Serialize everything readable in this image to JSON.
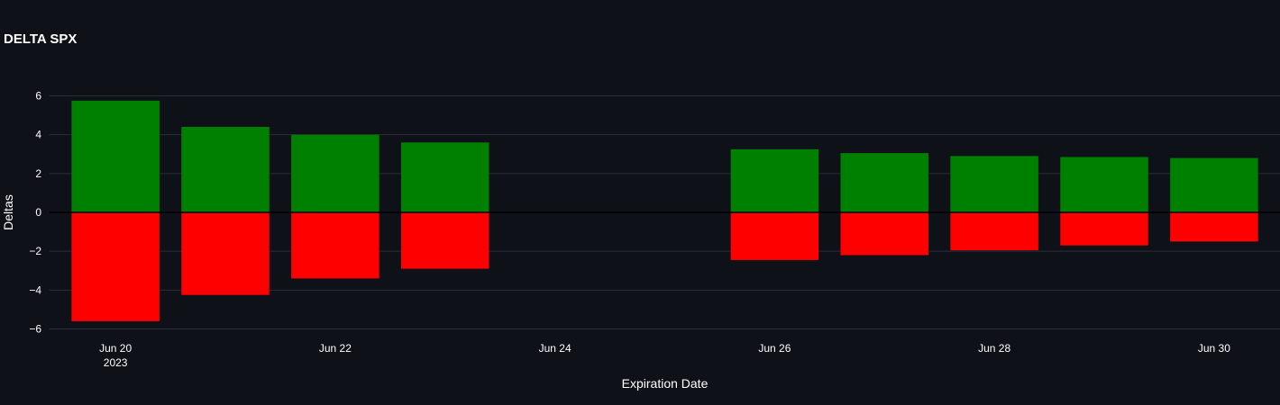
{
  "chart_data": {
    "type": "bar",
    "title": "DELTA SPX",
    "xlabel": "Expiration Date",
    "ylabel": "Deltas",
    "ylim": [
      -6.3,
      6.3
    ],
    "yticks": [
      6,
      4,
      2,
      0,
      -2,
      -4,
      -6
    ],
    "ytick_labels": [
      "6",
      "4",
      "2",
      "0",
      "−2",
      "−4",
      "−6"
    ],
    "xaxis_range": [
      "2023-06-19T09:36",
      "2023-06-30T14:24"
    ],
    "xticks": [
      {
        "date": "2023-06-20",
        "label": "Jun 20",
        "sublabel": "2023"
      },
      {
        "date": "2023-06-22",
        "label": "Jun 22",
        "sublabel": ""
      },
      {
        "date": "2023-06-24",
        "label": "Jun 24",
        "sublabel": ""
      },
      {
        "date": "2023-06-26",
        "label": "Jun 26",
        "sublabel": ""
      },
      {
        "date": "2023-06-28",
        "label": "Jun 28",
        "sublabel": ""
      },
      {
        "date": "2023-06-30",
        "label": "Jun 30",
        "sublabel": ""
      }
    ],
    "series": [
      {
        "color": "#008000",
        "x": [
          "2023-06-20",
          "2023-06-21",
          "2023-06-22",
          "2023-06-23",
          "2023-06-26",
          "2023-06-27",
          "2023-06-28",
          "2023-06-29",
          "2023-06-30"
        ],
        "values": [
          5.75,
          4.4,
          4.0,
          3.6,
          3.25,
          3.05,
          2.9,
          2.85,
          2.8
        ]
      },
      {
        "color": "#ff0000",
        "x": [
          "2023-06-20",
          "2023-06-21",
          "2023-06-22",
          "2023-06-23",
          "2023-06-26",
          "2023-06-27",
          "2023-06-28",
          "2023-06-29",
          "2023-06-30"
        ],
        "values": [
          -5.6,
          -4.25,
          -3.4,
          -2.9,
          -2.45,
          -2.2,
          -1.95,
          -1.7,
          -1.5
        ]
      }
    ],
    "grid": true,
    "background": "#0f1119",
    "grid_color": "#2a2e39"
  }
}
